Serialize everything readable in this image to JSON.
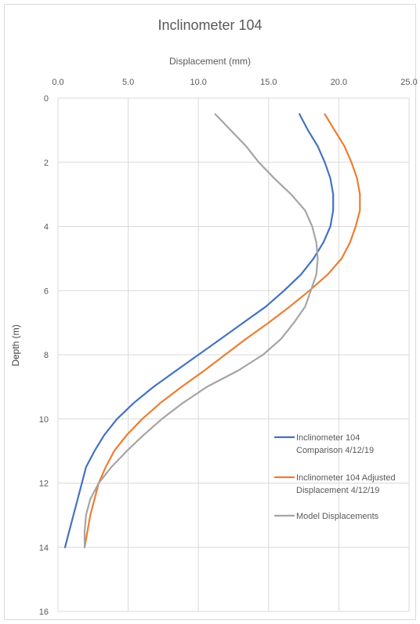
{
  "chart_data": {
    "type": "line",
    "title": "Inclinometer 104",
    "xlabel": "Displacement (mm)",
    "ylabel": "Depth (m)",
    "xlim": [
      0,
      25
    ],
    "ylim": [
      0,
      16
    ],
    "x_ticks": [
      0,
      5,
      10,
      15,
      20,
      25
    ],
    "x_tick_labels": [
      "0.0",
      "5.0",
      "10.0",
      "15.0",
      "20.0",
      "25.0"
    ],
    "y_ticks": [
      0,
      2,
      4,
      6,
      8,
      10,
      12,
      14,
      16
    ],
    "y_tick_labels": [
      "0",
      "2",
      "4",
      "6",
      "8",
      "10",
      "12",
      "14",
      "16"
    ],
    "x_axis_position": "top",
    "y_axis_inverted": true,
    "grid": true,
    "legend_position": "bottom-right",
    "colors": {
      "series_1": "#4472C4",
      "series_2": "#ED7D31",
      "series_3": "#A5A5A5",
      "grid": "#D9D9D9",
      "text": "#595959"
    },
    "series": [
      {
        "name": "Inclinometer 104 Comparison 4/12/19",
        "legend_lines": [
          "Inclinometer 104",
          "Comparison 4/12/19"
        ],
        "points": [
          [
            17.2,
            0.5
          ],
          [
            17.8,
            1.0
          ],
          [
            18.5,
            1.5
          ],
          [
            19.0,
            2.0
          ],
          [
            19.4,
            2.5
          ],
          [
            19.6,
            3.0
          ],
          [
            19.6,
            3.5
          ],
          [
            19.4,
            4.0
          ],
          [
            18.9,
            4.5
          ],
          [
            18.2,
            5.0
          ],
          [
            17.3,
            5.5
          ],
          [
            16.1,
            6.0
          ],
          [
            14.8,
            6.5
          ],
          [
            13.2,
            7.0
          ],
          [
            11.6,
            7.5
          ],
          [
            10.0,
            8.0
          ],
          [
            8.4,
            8.5
          ],
          [
            6.8,
            9.0
          ],
          [
            5.4,
            9.5
          ],
          [
            4.2,
            10.0
          ],
          [
            3.3,
            10.5
          ],
          [
            2.6,
            11.0
          ],
          [
            2.0,
            11.5
          ],
          [
            1.7,
            12.0
          ],
          [
            1.4,
            12.5
          ],
          [
            1.1,
            13.0
          ],
          [
            0.8,
            13.5
          ],
          [
            0.5,
            14.0
          ]
        ]
      },
      {
        "name": "Inclinometer 104 Adjusted Displacement 4/12/19",
        "legend_lines": [
          "Inclinometer 104 Adjusted",
          "Displacement 4/12/19"
        ],
        "points": [
          [
            19.0,
            0.5
          ],
          [
            19.7,
            1.0
          ],
          [
            20.4,
            1.5
          ],
          [
            20.9,
            2.0
          ],
          [
            21.3,
            2.5
          ],
          [
            21.5,
            3.0
          ],
          [
            21.5,
            3.5
          ],
          [
            21.2,
            4.0
          ],
          [
            20.8,
            4.5
          ],
          [
            20.2,
            5.0
          ],
          [
            19.2,
            5.5
          ],
          [
            17.9,
            6.0
          ],
          [
            16.5,
            6.5
          ],
          [
            15.0,
            7.0
          ],
          [
            13.4,
            7.5
          ],
          [
            11.9,
            8.0
          ],
          [
            10.4,
            8.5
          ],
          [
            8.8,
            9.0
          ],
          [
            7.3,
            9.5
          ],
          [
            6.0,
            10.0
          ],
          [
            4.9,
            10.5
          ],
          [
            4.0,
            11.0
          ],
          [
            3.4,
            11.5
          ],
          [
            2.9,
            12.0
          ],
          [
            2.6,
            12.5
          ],
          [
            2.3,
            13.0
          ],
          [
            2.1,
            13.5
          ],
          [
            1.9,
            14.0
          ]
        ]
      },
      {
        "name": "Model Displacements",
        "legend_lines": [
          "Model Displacements"
        ],
        "points": [
          [
            11.2,
            0.5
          ],
          [
            12.3,
            1.0
          ],
          [
            13.4,
            1.5
          ],
          [
            14.3,
            2.0
          ],
          [
            15.4,
            2.5
          ],
          [
            16.6,
            3.0
          ],
          [
            17.6,
            3.5
          ],
          [
            18.1,
            4.0
          ],
          [
            18.4,
            4.5
          ],
          [
            18.5,
            5.0
          ],
          [
            18.4,
            5.5
          ],
          [
            18.0,
            6.0
          ],
          [
            17.6,
            6.5
          ],
          [
            16.8,
            7.0
          ],
          [
            15.9,
            7.5
          ],
          [
            14.6,
            8.0
          ],
          [
            12.8,
            8.5
          ],
          [
            10.6,
            9.0
          ],
          [
            8.9,
            9.5
          ],
          [
            7.4,
            10.0
          ],
          [
            6.1,
            10.5
          ],
          [
            4.9,
            11.0
          ],
          [
            3.8,
            11.5
          ],
          [
            2.9,
            12.0
          ],
          [
            2.3,
            12.5
          ],
          [
            2.0,
            13.0
          ],
          [
            1.9,
            13.5
          ],
          [
            1.9,
            14.0
          ]
        ]
      }
    ]
  }
}
